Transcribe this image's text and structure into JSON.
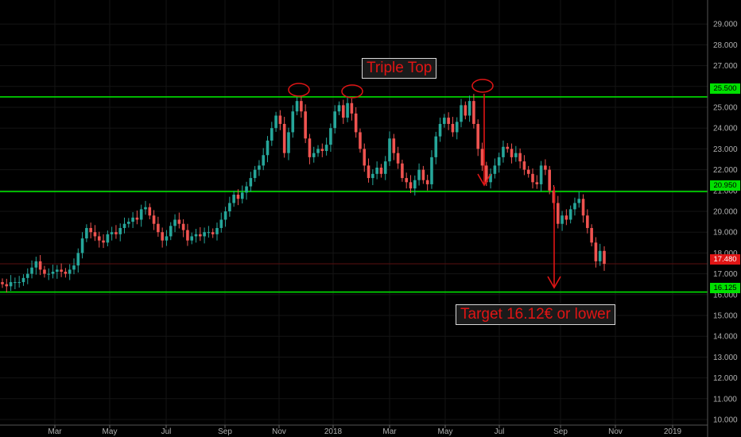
{
  "chart_data": {
    "type": "candlestick",
    "y_ticks": [
      "10.000",
      "11.000",
      "12.000",
      "13.000",
      "14.000",
      "15.000",
      "16.000",
      "17.000",
      "18.000",
      "19.000",
      "20.000",
      "21.000",
      "22.000",
      "23.000",
      "24.000",
      "25.000",
      "26.000",
      "27.000",
      "28.000",
      "29.000"
    ],
    "ylim": [
      10,
      29.5
    ],
    "x_ticks": [
      "Mar",
      "May",
      "Jul",
      "Sep",
      "Nov",
      "2018",
      "Mar",
      "May",
      "Jul",
      "Sep",
      "Nov",
      "2019"
    ],
    "x_range": [
      "2017-01",
      "2019-02"
    ],
    "levels": [
      {
        "name": "resistance",
        "value": 25.5,
        "label": "25.500",
        "color": "#00e000"
      },
      {
        "name": "neckline",
        "value": 20.95,
        "label": "20.950",
        "color": "#00e000"
      },
      {
        "name": "target",
        "value": 16.125,
        "label": "16.125",
        "color": "#00e000"
      }
    ],
    "last_price": {
      "value": 17.48,
      "label": "17.480",
      "color": "#e01515"
    },
    "closes": [
      16.5,
      16.4,
      16.6,
      16.6,
      16.6,
      16.8,
      17.0,
      17.3,
      17.6,
      17.2,
      17.0,
      17.0,
      17.1,
      17.2,
      17.1,
      17.0,
      17.2,
      17.4,
      18.0,
      18.7,
      19.2,
      19.0,
      18.8,
      18.6,
      18.5,
      18.9,
      19.0,
      18.9,
      19.2,
      19.4,
      19.5,
      19.7,
      19.6,
      20.1,
      20.2,
      19.8,
      19.4,
      19.0,
      18.6,
      18.8,
      19.3,
      19.6,
      19.4,
      19.1,
      18.6,
      18.8,
      18.9,
      18.8,
      19.0,
      19.0,
      18.9,
      19.2,
      19.6,
      20.0,
      20.4,
      20.8,
      20.6,
      20.9,
      21.2,
      21.6,
      22.0,
      22.2,
      22.7,
      23.4,
      24.0,
      24.6,
      24.2,
      22.8,
      23.8,
      24.8,
      25.3,
      24.8,
      23.5,
      22.6,
      22.8,
      23.0,
      22.9,
      23.2,
      24.0,
      24.8,
      25.1,
      24.5,
      25.2,
      24.7,
      23.8,
      23.0,
      22.2,
      21.6,
      21.8,
      22.1,
      21.8,
      22.4,
      23.5,
      22.8,
      22.3,
      21.6,
      21.4,
      21.1,
      21.5,
      22.0,
      21.5,
      21.3,
      22.6,
      23.6,
      24.2,
      24.5,
      24.2,
      23.8,
      24.3,
      25.1,
      24.6,
      25.3,
      24.2,
      23.0,
      22.2,
      21.4,
      21.8,
      22.2,
      22.6,
      23.1,
      23.0,
      22.6,
      22.8,
      22.4,
      22.0,
      21.8,
      21.4,
      21.3,
      22.2,
      22.0,
      21.0,
      20.4,
      19.4,
      19.8,
      19.6,
      20.1,
      20.4,
      20.6,
      19.8,
      19.2,
      18.5,
      17.6,
      18.1,
      17.48
    ],
    "annotations": {
      "triple_top": "Triple Top",
      "target": "Target 16.12€ or lower"
    },
    "candle_colors": {
      "up": "#26a69a",
      "down": "#ef5350"
    }
  }
}
